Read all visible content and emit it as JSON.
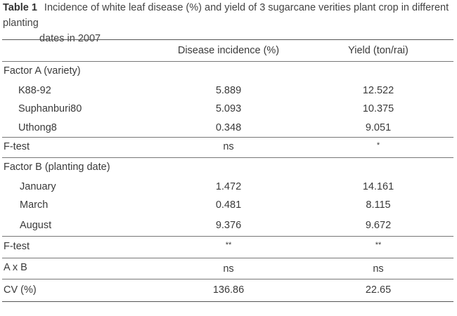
{
  "caption": {
    "label": "Table 1",
    "line1": "Incidence of white leaf disease (%) and yield of 3 sugarcane verities plant crop in different planting",
    "line2": "dates in 2007"
  },
  "header": {
    "col_a": "Disease incidence (%)",
    "col_b": "Yield (ton/rai)"
  },
  "factor_a": {
    "title": "Factor A (variety)",
    "rows": [
      {
        "label": "K88-92",
        "disease": "5.889",
        "yield": "12.522"
      },
      {
        "label": "Suphanburi80",
        "disease": "5.093",
        "yield": "10.375"
      },
      {
        "label": "Uthong8",
        "disease": "0.348",
        "yield": "9.051"
      }
    ],
    "ftest": {
      "label": "F-test",
      "disease": "ns",
      "yield": "*"
    }
  },
  "factor_b": {
    "title": "Factor B (planting date)",
    "rows": [
      {
        "label": "January",
        "disease": "1.472",
        "yield": "14.161"
      },
      {
        "label": "March",
        "disease": "0.481",
        "yield": "8.115"
      },
      {
        "label": "August",
        "disease": "9.376",
        "yield": "9.672"
      }
    ],
    "ftest": {
      "label": "F-test",
      "disease": "**",
      "yield": "**"
    }
  },
  "interaction": {
    "label": "A x B",
    "disease": "ns",
    "yield": "ns"
  },
  "cv": {
    "label": "CV (%)",
    "disease": "136.86",
    "yield": "22.65"
  }
}
